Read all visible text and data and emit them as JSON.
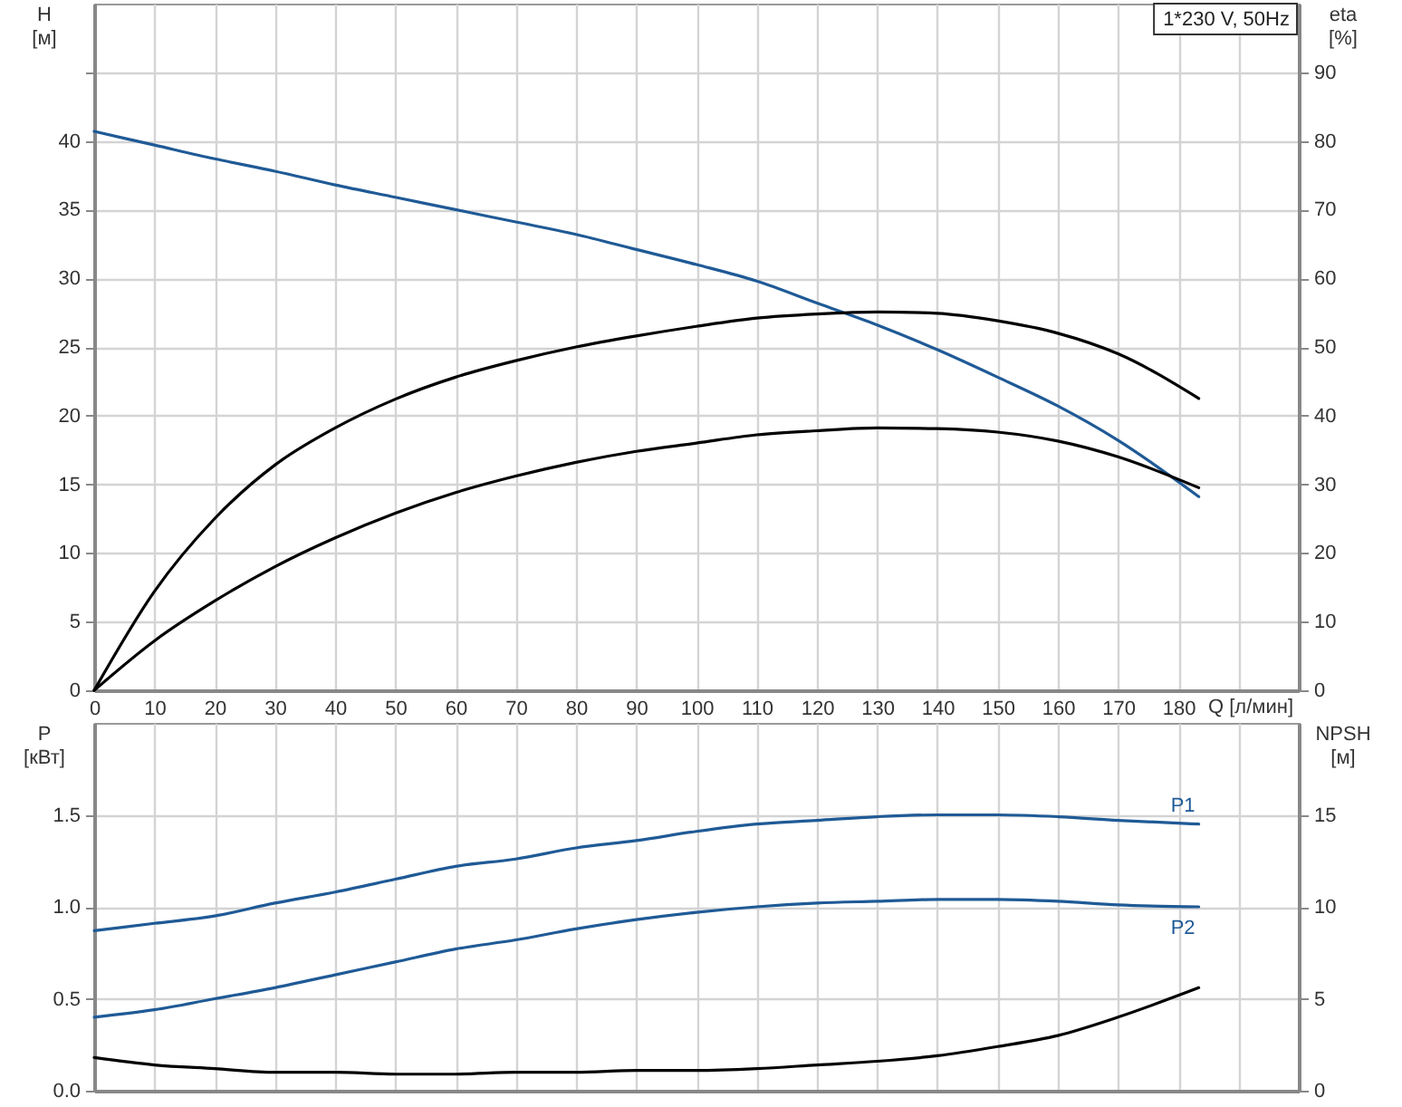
{
  "chart_data": [
    {
      "type": "line",
      "xlabel": "Q [л/мин]",
      "ylabel": "H [м]",
      "y2label": "eta [%]",
      "annotations": [
        "1*230 V, 50Hz"
      ],
      "xlim": [
        0,
        200
      ],
      "xticks": [
        0,
        10,
        20,
        30,
        40,
        50,
        60,
        70,
        80,
        90,
        100,
        110,
        120,
        130,
        140,
        150,
        160,
        170,
        180,
        {
          "value": 190,
          "label": null
        },
        {
          "value": 200,
          "label": null
        }
      ],
      "ylim": [
        0,
        50
      ],
      "yticks": [
        0,
        5,
        10,
        15,
        20,
        25,
        30,
        35,
        40,
        {
          "value": 45,
          "label": null
        }
      ],
      "y2lim": [
        0,
        100
      ],
      "y2ticks": [
        0,
        10,
        20,
        30,
        40,
        50,
        60,
        70,
        80,
        90
      ],
      "grid": true,
      "x": [
        0,
        10,
        20,
        30,
        40,
        50,
        60,
        70,
        80,
        90,
        100,
        110,
        120,
        130,
        140,
        150,
        160,
        170,
        183.4
      ],
      "series": [
        {
          "color": "#1f5a96",
          "values": [
            40.7,
            39.7,
            38.7,
            37.8,
            36.8,
            35.9,
            35.0,
            34.1,
            33.2,
            32.1,
            31.0,
            29.8,
            28.2,
            26.6,
            24.8,
            22.8,
            20.7,
            18.2,
            14.1
          ]
        },
        {
          "color": "#000000",
          "axis": "y2",
          "values": [
            0,
            14.4,
            25,
            32.8,
            38.2,
            42.4,
            45.6,
            48,
            50,
            51.6,
            53,
            54.2,
            54.8,
            55.1,
            54.9,
            53.8,
            52,
            49,
            42.5
          ]
        },
        {
          "color": "#000000",
          "axis": "y2",
          "values": [
            0,
            7.2,
            13,
            18,
            22.2,
            25.8,
            28.8,
            31.2,
            33.2,
            34.8,
            36,
            37.2,
            37.8,
            38.2,
            38.1,
            37.6,
            36.3,
            34,
            29.5
          ]
        }
      ]
    },
    {
      "type": "line",
      "ylabel": "P [кВт]",
      "y2label": "NPSH [м]",
      "tick_labels": "y",
      "xlim": [
        0,
        200
      ],
      "xticks": [
        0,
        10,
        20,
        30,
        40,
        50,
        60,
        70,
        80,
        90,
        100,
        110,
        120,
        130,
        140,
        150,
        160,
        170,
        180,
        190,
        200
      ],
      "ylim": [
        0,
        2
      ],
      "yticks": [
        {
          "value": 0,
          "label": "0.0"
        },
        {
          "value": 0.5,
          "label": "0.5"
        },
        {
          "value": 1,
          "label": "1.0"
        },
        {
          "value": 1.5,
          "label": "1.5"
        }
      ],
      "y2lim": [
        0,
        20
      ],
      "y2ticks": [
        0,
        5,
        10,
        15
      ],
      "grid": true,
      "x": [
        0,
        10,
        20,
        30,
        40,
        50,
        60,
        70,
        80,
        90,
        100,
        110,
        120,
        130,
        140,
        150,
        160,
        170,
        183.4
      ],
      "series": [
        {
          "name": "P1",
          "color": "#1f5a96",
          "values": [
            0.87,
            0.91,
            0.95,
            1.02,
            1.08,
            1.15,
            1.22,
            1.26,
            1.32,
            1.36,
            1.41,
            1.45,
            1.47,
            1.49,
            1.5,
            1.5,
            1.49,
            1.47,
            1.45
          ]
        },
        {
          "name": "P2",
          "color": "#1f5a96",
          "values": [
            0.4,
            0.44,
            0.5,
            0.56,
            0.63,
            0.7,
            0.77,
            0.82,
            0.88,
            0.93,
            0.97,
            1.0,
            1.02,
            1.03,
            1.04,
            1.04,
            1.03,
            1.01,
            1.0
          ]
        },
        {
          "color": "#000000",
          "axis": "y2",
          "values": [
            1.8,
            1.4,
            1.2,
            1.0,
            1.0,
            0.9,
            0.9,
            1.0,
            1.0,
            1.1,
            1.1,
            1.2,
            1.4,
            1.6,
            1.9,
            2.4,
            3.0,
            4.0,
            5.6
          ]
        }
      ]
    }
  ]
}
